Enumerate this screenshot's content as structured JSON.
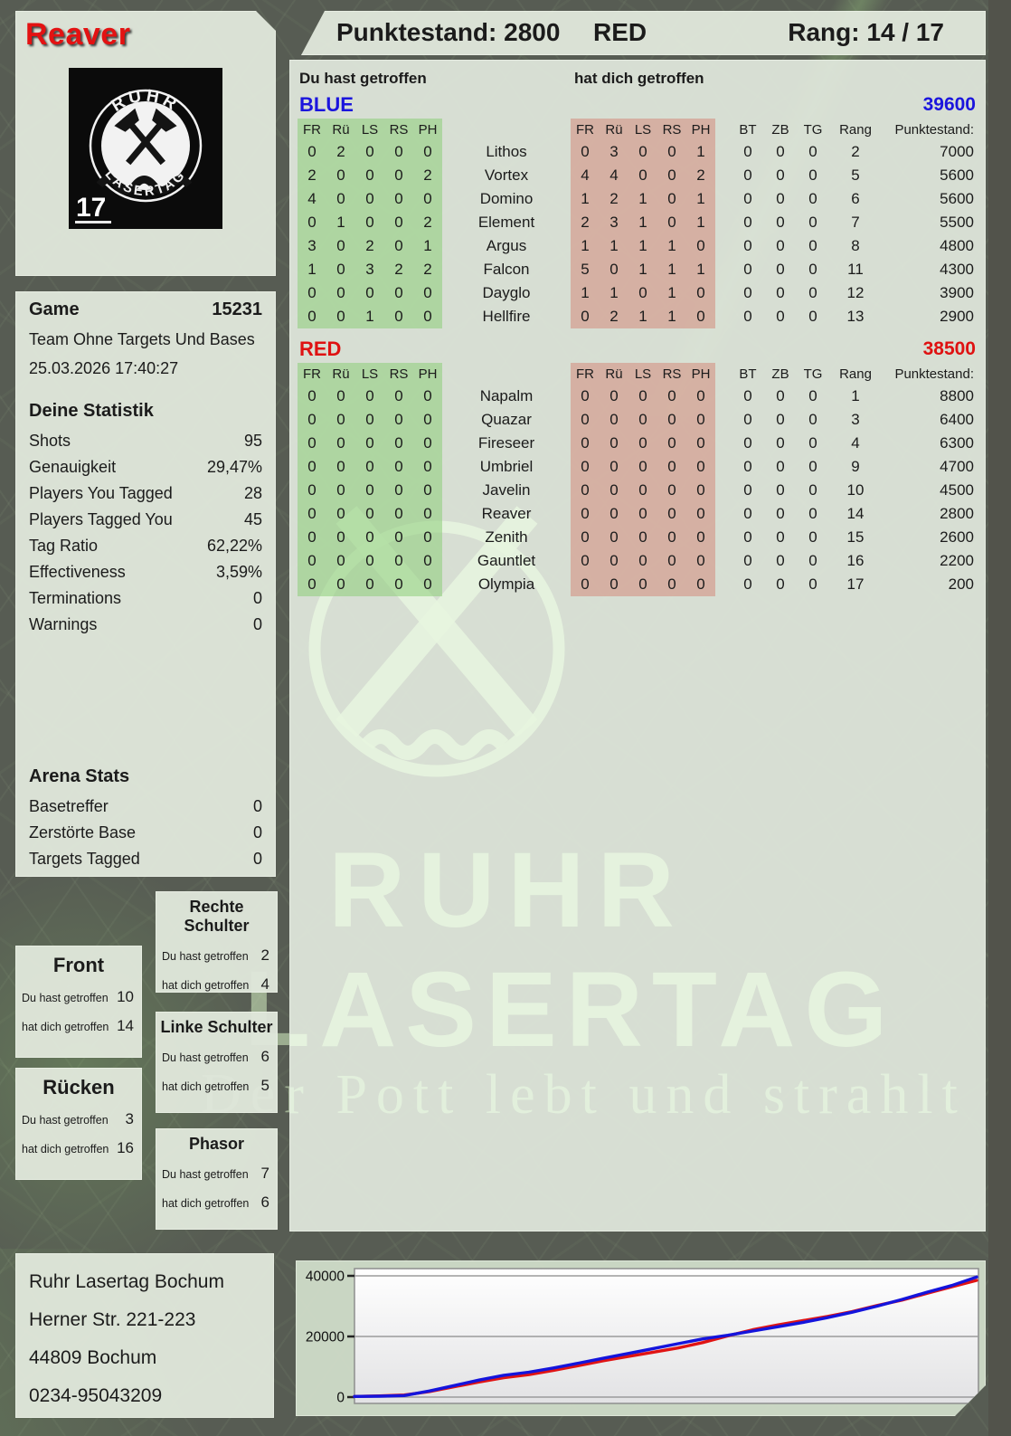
{
  "player": {
    "name": "Reaver"
  },
  "header": {
    "score": "Punktestand: 2800",
    "team": "RED",
    "rank": "Rang: 14 / 17"
  },
  "logo": {
    "arc_top": "RUHR",
    "arc_bottom": "LASERTAG",
    "number": "17"
  },
  "game": {
    "label": "Game",
    "id": "15231",
    "mode": "Team Ohne Targets Und Bases",
    "datetime": "25.03.2026 17:40:27"
  },
  "stats": {
    "title": "Deine Statistik",
    "rows": [
      [
        "Shots",
        "95"
      ],
      [
        "Genauigkeit",
        "29,47%"
      ],
      [
        "Players You Tagged",
        "28"
      ],
      [
        "Players Tagged You",
        "45"
      ],
      [
        "Tag Ratio",
        "62,22%"
      ],
      [
        "Effectiveness",
        "3,59%"
      ],
      [
        "Terminations",
        "0"
      ],
      [
        "Warnings",
        "0"
      ]
    ]
  },
  "arena": {
    "title": "Arena Stats",
    "rows": [
      [
        "Basetreffer",
        "0"
      ],
      [
        "Zerstörte Base",
        "0"
      ],
      [
        "Targets Tagged",
        "0"
      ]
    ]
  },
  "hit_tables": {
    "left_label": "Du hast getroffen",
    "right_label": "hat dich getroffen",
    "columns": [
      "FR",
      "Rü",
      "LS",
      "RS",
      "PH"
    ],
    "extra_columns": [
      "BT",
      "ZB",
      "TG",
      "Rang",
      "Punktestand:"
    ],
    "teams": [
      {
        "name": "BLUE",
        "total": "39600",
        "color": "#1b15dd",
        "rows": [
          {
            "player": "Lithos",
            "you": [
              0,
              2,
              0,
              0,
              0
            ],
            "them": [
              0,
              3,
              0,
              0,
              1
            ],
            "bt": 0,
            "zb": 0,
            "tg": 0,
            "rang": 2,
            "score": 7000
          },
          {
            "player": "Vortex",
            "you": [
              2,
              0,
              0,
              0,
              2
            ],
            "them": [
              4,
              4,
              0,
              0,
              2
            ],
            "bt": 0,
            "zb": 0,
            "tg": 0,
            "rang": 5,
            "score": 5600
          },
          {
            "player": "Domino",
            "you": [
              4,
              0,
              0,
              0,
              0
            ],
            "them": [
              1,
              2,
              1,
              0,
              1
            ],
            "bt": 0,
            "zb": 0,
            "tg": 0,
            "rang": 6,
            "score": 5600
          },
          {
            "player": "Element",
            "you": [
              0,
              1,
              0,
              0,
              2
            ],
            "them": [
              2,
              3,
              1,
              0,
              1
            ],
            "bt": 0,
            "zb": 0,
            "tg": 0,
            "rang": 7,
            "score": 5500
          },
          {
            "player": "Argus",
            "you": [
              3,
              0,
              2,
              0,
              1
            ],
            "them": [
              1,
              1,
              1,
              1,
              0
            ],
            "bt": 0,
            "zb": 0,
            "tg": 0,
            "rang": 8,
            "score": 4800
          },
          {
            "player": "Falcon",
            "you": [
              1,
              0,
              3,
              2,
              2
            ],
            "them": [
              5,
              0,
              1,
              1,
              1
            ],
            "bt": 0,
            "zb": 0,
            "tg": 0,
            "rang": 11,
            "score": 4300
          },
          {
            "player": "Dayglo",
            "you": [
              0,
              0,
              0,
              0,
              0
            ],
            "them": [
              1,
              1,
              0,
              1,
              0
            ],
            "bt": 0,
            "zb": 0,
            "tg": 0,
            "rang": 12,
            "score": 3900
          },
          {
            "player": "Hellfire",
            "you": [
              0,
              0,
              1,
              0,
              0
            ],
            "them": [
              0,
              2,
              1,
              1,
              0
            ],
            "bt": 0,
            "zb": 0,
            "tg": 0,
            "rang": 13,
            "score": 2900
          }
        ]
      },
      {
        "name": "RED",
        "total": "38500",
        "color": "#df1111",
        "rows": [
          {
            "player": "Napalm",
            "you": [
              0,
              0,
              0,
              0,
              0
            ],
            "them": [
              0,
              0,
              0,
              0,
              0
            ],
            "bt": 0,
            "zb": 0,
            "tg": 0,
            "rang": 1,
            "score": 8800
          },
          {
            "player": "Quazar",
            "you": [
              0,
              0,
              0,
              0,
              0
            ],
            "them": [
              0,
              0,
              0,
              0,
              0
            ],
            "bt": 0,
            "zb": 0,
            "tg": 0,
            "rang": 3,
            "score": 6400
          },
          {
            "player": "Fireseer",
            "you": [
              0,
              0,
              0,
              0,
              0
            ],
            "them": [
              0,
              0,
              0,
              0,
              0
            ],
            "bt": 0,
            "zb": 0,
            "tg": 0,
            "rang": 4,
            "score": 6300
          },
          {
            "player": "Umbriel",
            "you": [
              0,
              0,
              0,
              0,
              0
            ],
            "them": [
              0,
              0,
              0,
              0,
              0
            ],
            "bt": 0,
            "zb": 0,
            "tg": 0,
            "rang": 9,
            "score": 4700
          },
          {
            "player": "Javelin",
            "you": [
              0,
              0,
              0,
              0,
              0
            ],
            "them": [
              0,
              0,
              0,
              0,
              0
            ],
            "bt": 0,
            "zb": 0,
            "tg": 0,
            "rang": 10,
            "score": 4500
          },
          {
            "player": "Reaver",
            "you": [
              0,
              0,
              0,
              0,
              0
            ],
            "them": [
              0,
              0,
              0,
              0,
              0
            ],
            "bt": 0,
            "zb": 0,
            "tg": 0,
            "rang": 14,
            "score": 2800
          },
          {
            "player": "Zenith",
            "you": [
              0,
              0,
              0,
              0,
              0
            ],
            "them": [
              0,
              0,
              0,
              0,
              0
            ],
            "bt": 0,
            "zb": 0,
            "tg": 0,
            "rang": 15,
            "score": 2600
          },
          {
            "player": "Gauntlet",
            "you": [
              0,
              0,
              0,
              0,
              0
            ],
            "them": [
              0,
              0,
              0,
              0,
              0
            ],
            "bt": 0,
            "zb": 0,
            "tg": 0,
            "rang": 16,
            "score": 2200
          },
          {
            "player": "Olympia",
            "you": [
              0,
              0,
              0,
              0,
              0
            ],
            "them": [
              0,
              0,
              0,
              0,
              0
            ],
            "bt": 0,
            "zb": 0,
            "tg": 0,
            "rang": 17,
            "score": 200
          }
        ]
      }
    ]
  },
  "body_part_row_labels": {
    "you": "Du hast getroffen",
    "them": "hat dich getroffen"
  },
  "body_parts": [
    {
      "title": "Rechte Schulter",
      "you": 2,
      "them": 4
    },
    {
      "title": "Front",
      "you": 10,
      "them": 14
    },
    {
      "title": "Linke Schulter",
      "you": 6,
      "them": 5
    },
    {
      "title": "Rücken",
      "you": 3,
      "them": 16
    },
    {
      "title": "Phasor",
      "you": 7,
      "them": 6
    }
  ],
  "address": {
    "lines": [
      "Ruhr Lasertag Bochum",
      "Herner Str. 221-223",
      "44809 Bochum",
      "0234-95043209"
    ]
  },
  "watermark": {
    "big1": "RUHR",
    "big2": "LASERTAG",
    "slogan": "Der Pott lebt und strahlt"
  },
  "chart_data": {
    "type": "line",
    "title": "",
    "xlabel": "",
    "ylabel": "",
    "ylim": [
      0,
      40000
    ],
    "yticks": [
      0,
      20000,
      40000
    ],
    "grid": true,
    "legend": "none",
    "x_note": "cumulative team score over game time, evenly spaced samples",
    "series": [
      {
        "name": "BLUE",
        "color": "#1414dc",
        "values": [
          200,
          300,
          500,
          2000,
          3800,
          5600,
          7200,
          8200,
          9600,
          11200,
          12800,
          14400,
          16000,
          17600,
          19200,
          20400,
          21800,
          23200,
          24600,
          26200,
          28000,
          30000,
          32200,
          34600,
          36800,
          39600
        ]
      },
      {
        "name": "RED",
        "color": "#e01414",
        "values": [
          200,
          400,
          700,
          1800,
          3400,
          5000,
          6400,
          7400,
          8800,
          10400,
          12000,
          13400,
          14800,
          16200,
          18000,
          20200,
          22200,
          23800,
          25200,
          26600,
          28200,
          30200,
          32000,
          34200,
          36400,
          38500
        ]
      }
    ]
  }
}
